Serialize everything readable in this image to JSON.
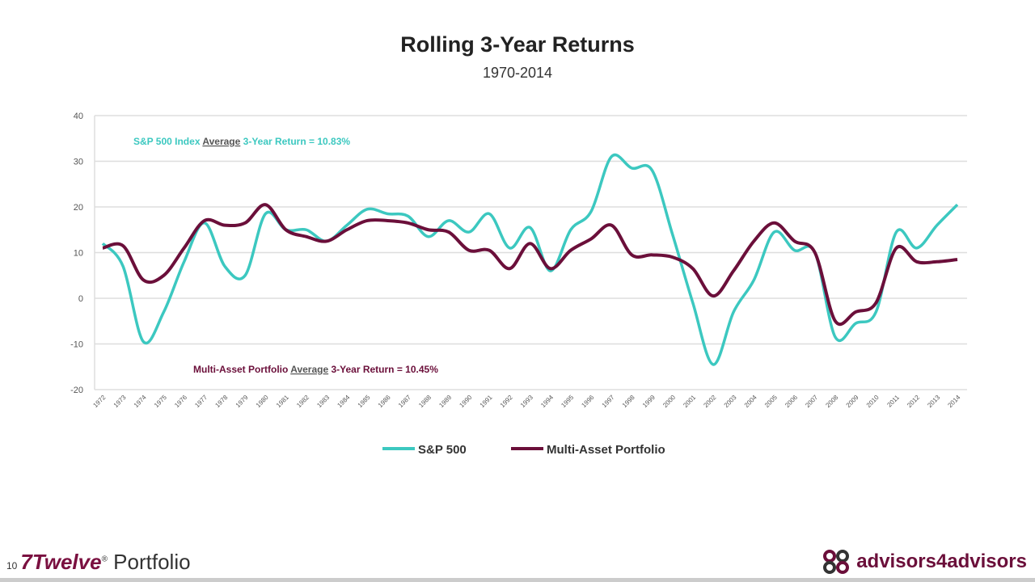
{
  "chart_data": {
    "type": "line",
    "title": "Rolling 3-Year Returns",
    "subtitle": "1970-2014",
    "ylim": [
      -20,
      40
    ],
    "yticks": [
      40,
      30,
      20,
      10,
      0,
      -10,
      -20
    ],
    "grid": true,
    "legend_placement": "bottom",
    "x": [
      "1972",
      "1973",
      "1974",
      "1975",
      "1976",
      "1977",
      "1978",
      "1979",
      "1980",
      "1981",
      "1982",
      "1983",
      "1984",
      "1985",
      "1986",
      "1987",
      "1988",
      "1989",
      "1990",
      "1991",
      "1992",
      "1993",
      "1994",
      "1995",
      "1996",
      "1997",
      "1998",
      "1999",
      "2000",
      "2001",
      "2002",
      "2003",
      "2004",
      "2005",
      "2006",
      "2007",
      "2008",
      "2009",
      "2010",
      "2011",
      "2012",
      "2013",
      "2014"
    ],
    "series": [
      {
        "name": "S&P 500",
        "color": "#3cc8c0",
        "values": [
          12,
          7,
          -9.5,
          -3,
          8,
          16.5,
          7,
          5,
          18.5,
          15,
          15,
          12.5,
          16,
          19.5,
          18.5,
          18,
          13.5,
          17,
          14.5,
          18.5,
          11,
          15.5,
          6,
          15,
          19,
          31,
          28.5,
          28,
          14,
          -1,
          -14.5,
          -3,
          4,
          14.5,
          10.5,
          10,
          -8.5,
          -5.5,
          -3,
          14.5,
          11,
          16,
          20.5
        ]
      },
      {
        "name": "Multi-Asset Portfolio",
        "color": "#6b0f3a",
        "values": [
          11,
          11.5,
          4,
          5,
          11,
          17,
          16,
          16.5,
          20.5,
          15,
          13.5,
          12.5,
          15,
          17,
          17,
          16.5,
          15,
          14.5,
          10.5,
          10.5,
          6.5,
          12,
          6.5,
          10.5,
          13,
          16,
          9.5,
          9.5,
          9,
          6.5,
          0.5,
          6,
          12.5,
          16.5,
          12.5,
          10,
          -5,
          -3,
          -1,
          11,
          8,
          8,
          8.5
        ]
      }
    ],
    "annotations": [
      {
        "pre": "S&P 500 Index ",
        "u": "Average",
        "post": " 3-Year Return = 10.83%",
        "color": "#3cc8c0"
      },
      {
        "pre": "Multi-Asset Portfolio ",
        "u": "Average",
        "post": " 3-Year Return = 10.45%",
        "color": "#6b0f3a"
      }
    ]
  },
  "footer": {
    "page": "10",
    "brand_a": "7Twelve",
    "reg": "®",
    "brand_b": " Portfolio",
    "right_logo": "advisors4advisors"
  }
}
